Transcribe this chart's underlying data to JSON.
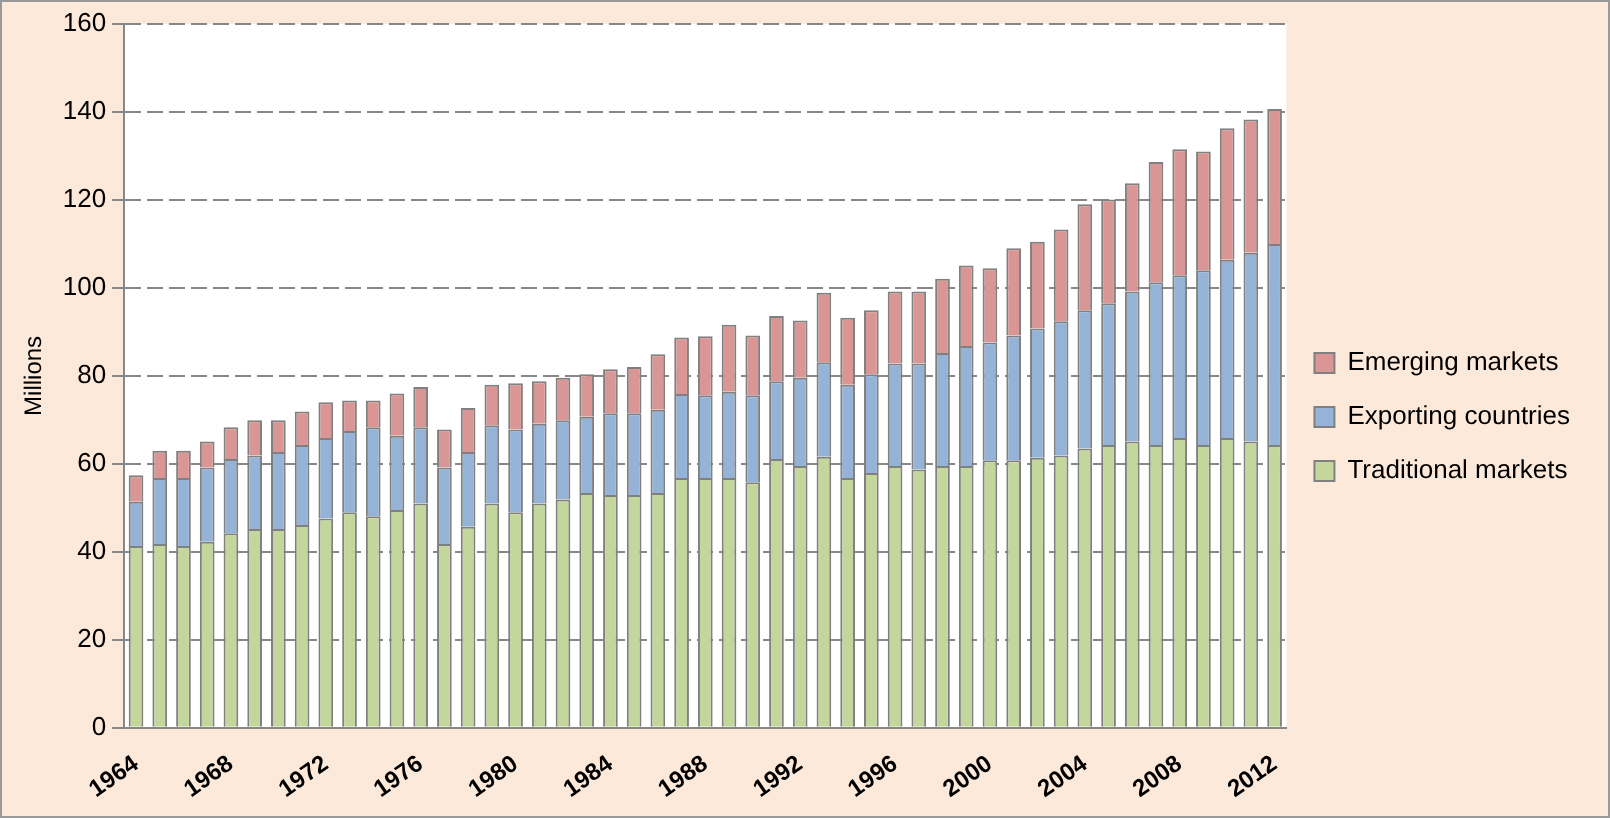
{
  "chart_data": {
    "type": "bar",
    "stacked": true,
    "ylabel": "Millions",
    "categories": [
      "1964",
      null,
      null,
      null,
      "1968",
      null,
      null,
      null,
      "1972",
      null,
      null,
      null,
      "1976",
      null,
      null,
      null,
      "1980",
      null,
      null,
      null,
      "1984",
      null,
      null,
      null,
      "1988",
      null,
      null,
      null,
      "1992",
      null,
      null,
      null,
      "1996",
      null,
      null,
      null,
      "2000",
      null,
      null,
      null,
      "2004",
      null,
      null,
      null,
      "2008",
      null,
      null,
      null,
      "2012"
    ],
    "series": [
      {
        "name": "Traditional markets",
        "color": "#c3d69b",
        "values": [
          41.3,
          41.8,
          41.3,
          42.3,
          44.2,
          45.2,
          45.2,
          46.1,
          47.6,
          49.0,
          48.1,
          49.5,
          51.0,
          41.8,
          45.7,
          51.0,
          49.0,
          51.0,
          51.9,
          53.4,
          52.9,
          52.9,
          53.4,
          56.8,
          56.8,
          56.8,
          55.8,
          61.1,
          59.5,
          61.6,
          56.8,
          57.9,
          59.5,
          58.7,
          59.5,
          59.5,
          60.8,
          60.8,
          61.4,
          61.9,
          63.5,
          64.3,
          65.1,
          64.3,
          65.9,
          64.3,
          65.9,
          65.1,
          64.3
        ]
      },
      {
        "name": "Exporting countries",
        "color": "#95b3d7",
        "values": [
          10.1,
          15.0,
          15.5,
          16.9,
          16.9,
          16.7,
          17.5,
          18.2,
          18.3,
          18.5,
          20.2,
          16.9,
          17.3,
          17.4,
          17.0,
          17.8,
          18.8,
          18.1,
          18.0,
          17.3,
          18.6,
          18.6,
          18.9,
          19.1,
          18.8,
          19.6,
          19.8,
          17.7,
          20.1,
          21.5,
          21.2,
          22.5,
          23.3,
          24.1,
          25.7,
          27.3,
          26.8,
          28.4,
          29.4,
          30.5,
          31.4,
          32.2,
          34.1,
          37.0,
          37.0,
          39.7,
          40.5,
          42.9,
          45.7
        ]
      },
      {
        "name": "Emerging markets",
        "color": "#d99694",
        "values": [
          6.0,
          6.2,
          6.2,
          5.9,
          7.2,
          8.0,
          7.2,
          7.6,
          8.1,
          6.9,
          6.1,
          9.6,
          9.2,
          8.6,
          10.0,
          9.2,
          10.5,
          9.7,
          9.7,
          9.7,
          10.0,
          10.5,
          12.6,
          12.8,
          13.4,
          15.2,
          13.6,
          14.8,
          13.0,
          15.8,
          15.2,
          14.5,
          16.4,
          16.4,
          16.9,
          18.3,
          16.9,
          19.8,
          19.7,
          20.9,
          24.1,
          23.6,
          24.6,
          27.3,
          28.6,
          27.0,
          29.9,
          30.3,
          30.7
        ]
      }
    ],
    "ylim": [
      0,
      160
    ],
    "yticks": [
      0,
      20,
      40,
      60,
      80,
      100,
      120,
      140,
      160
    ],
    "grid": "y",
    "legend": "right"
  }
}
